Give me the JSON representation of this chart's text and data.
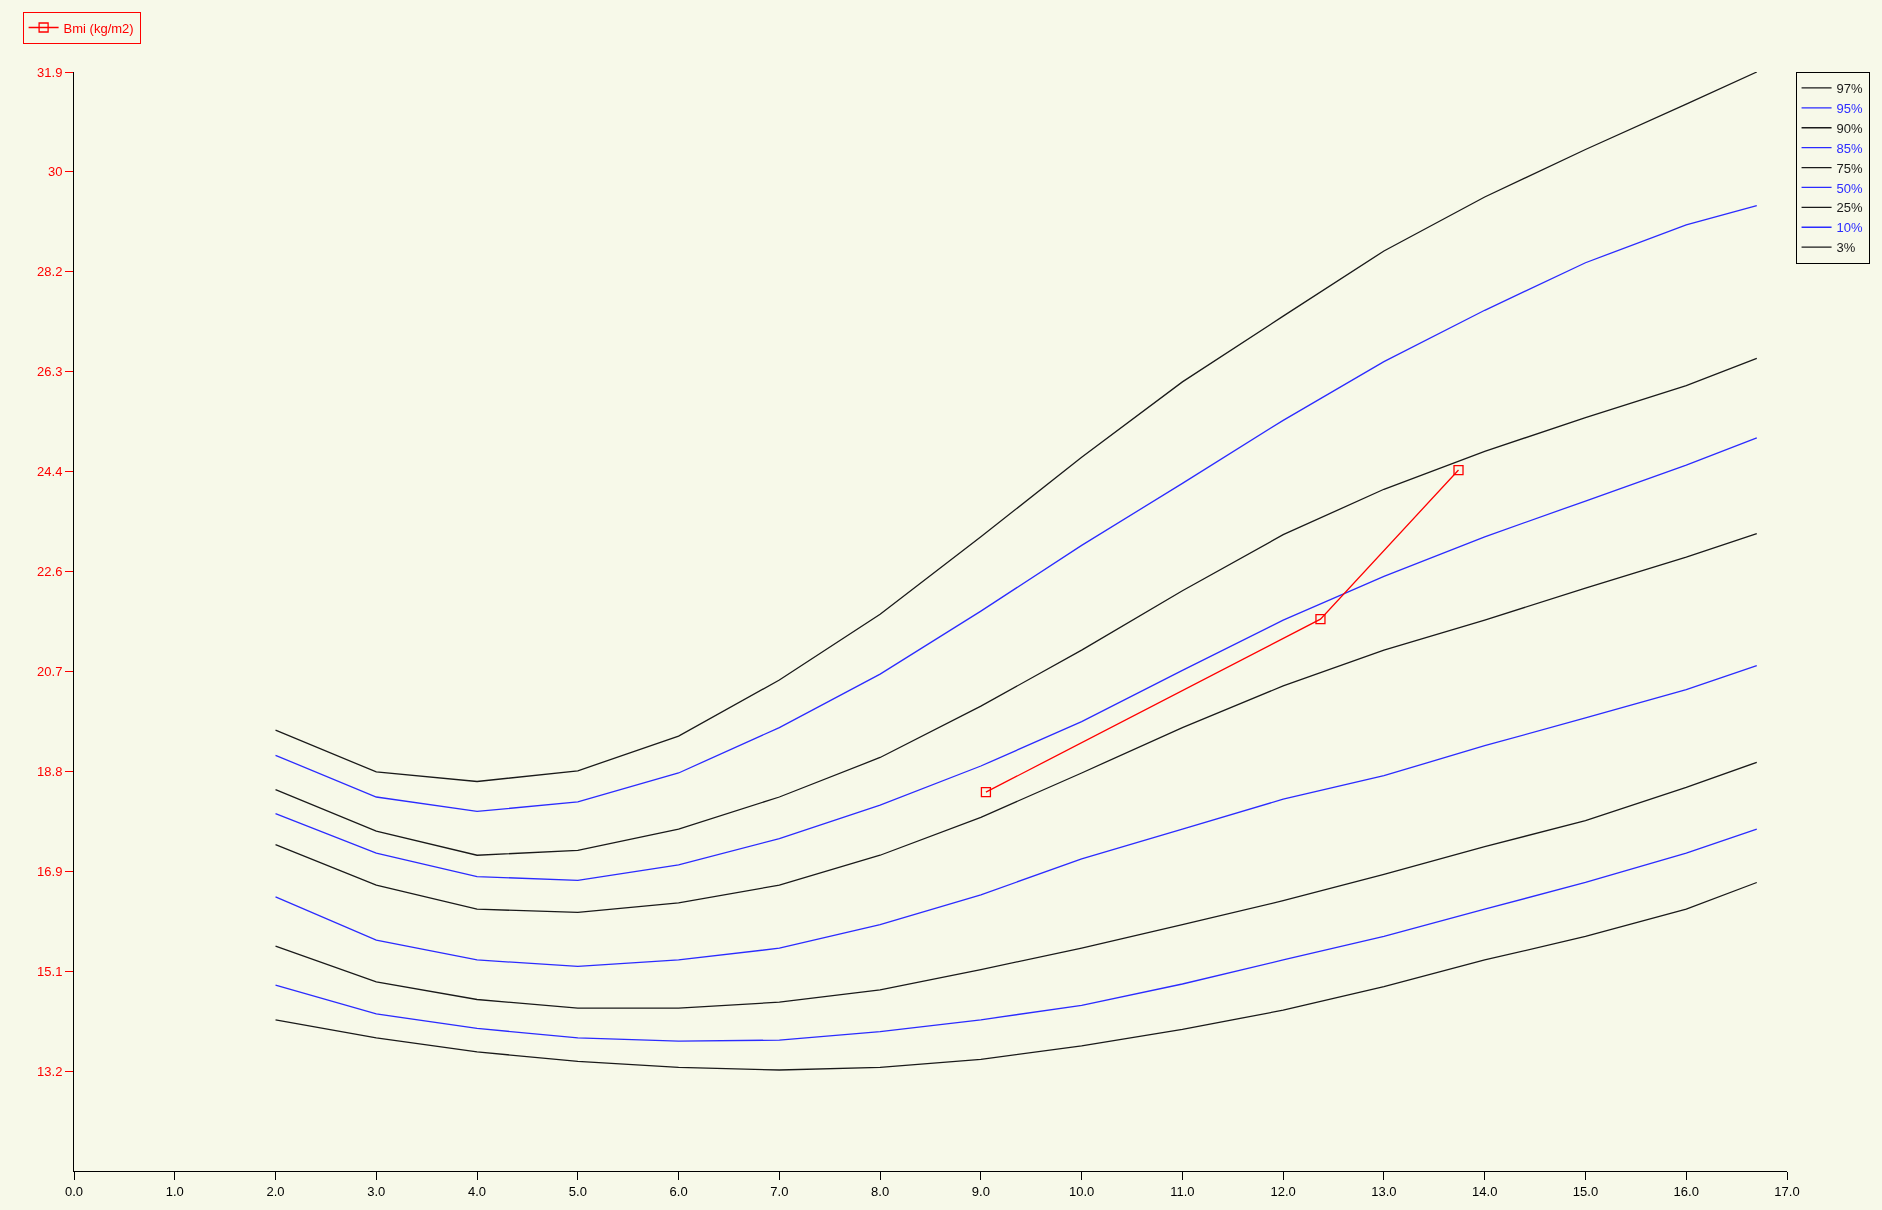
{
  "chart_data": {
    "type": "line",
    "x": [
      2,
      3,
      4,
      5,
      6,
      7,
      8,
      9,
      10,
      11,
      12,
      13,
      14,
      15,
      16,
      16.7
    ],
    "xlim": [
      0,
      17
    ],
    "xticks": [
      {
        "value": 0,
        "label": "0.0"
      },
      {
        "value": 1,
        "label": "1.0"
      },
      {
        "value": 2,
        "label": "2.0"
      },
      {
        "value": 3,
        "label": "3.0"
      },
      {
        "value": 4,
        "label": "4.0"
      },
      {
        "value": 5,
        "label": "5.0"
      },
      {
        "value": 6,
        "label": "6.0"
      },
      {
        "value": 7,
        "label": "7.0"
      },
      {
        "value": 8,
        "label": "8.0"
      },
      {
        "value": 9,
        "label": "9.0"
      },
      {
        "value": 10,
        "label": "10.0"
      },
      {
        "value": 11,
        "label": "11.0"
      },
      {
        "value": 12,
        "label": "12.0"
      },
      {
        "value": 13,
        "label": "13.0"
      },
      {
        "value": 14,
        "label": "14.0"
      },
      {
        "value": 15,
        "label": "15.0"
      },
      {
        "value": 16,
        "label": "16.0"
      },
      {
        "value": 17,
        "label": "17.0"
      }
    ],
    "ylim": [
      11.33,
      31.9
    ],
    "yticks": [
      {
        "value": 13.2,
        "label": "13.2"
      },
      {
        "value": 15.07,
        "label": "15.1"
      },
      {
        "value": 16.94,
        "label": "16.9"
      },
      {
        "value": 18.81,
        "label": "18.8"
      },
      {
        "value": 20.68,
        "label": "20.7"
      },
      {
        "value": 22.55,
        "label": "22.6"
      },
      {
        "value": 24.42,
        "label": "24.4"
      },
      {
        "value": 26.29,
        "label": "26.3"
      },
      {
        "value": 28.16,
        "label": "28.2"
      },
      {
        "value": 30.03,
        "label": "30"
      },
      {
        "value": 31.9,
        "label": "31.9"
      }
    ],
    "grid": false,
    "legend": "top right",
    "marker": "none",
    "line_style": "solid",
    "series": [
      {
        "name": "97%",
        "color": "#1a1a1a",
        "values": [
          19.58,
          18.8,
          18.62,
          18.82,
          19.47,
          20.52,
          21.75,
          23.2,
          24.69,
          26.1,
          27.33,
          28.55,
          29.56,
          30.45,
          31.3,
          31.9
        ]
      },
      {
        "name": "95%",
        "color": "#2b2bff",
        "values": [
          19.11,
          18.33,
          18.06,
          18.24,
          18.78,
          19.63,
          20.63,
          21.81,
          23.04,
          24.2,
          25.38,
          26.48,
          27.44,
          28.33,
          29.04,
          29.4
        ]
      },
      {
        "name": "90%",
        "color": "#1a1a1a",
        "values": [
          18.47,
          17.69,
          17.24,
          17.33,
          17.73,
          18.33,
          19.07,
          20.03,
          21.08,
          22.19,
          23.24,
          24.09,
          24.8,
          25.43,
          26.03,
          26.54
        ]
      },
      {
        "name": "85%",
        "color": "#2b2bff",
        "values": [
          18.02,
          17.28,
          16.84,
          16.77,
          17.06,
          17.55,
          18.18,
          18.91,
          19.74,
          20.7,
          21.64,
          22.46,
          23.2,
          23.87,
          24.54,
          25.05
        ]
      },
      {
        "name": "75%",
        "color": "#1a1a1a",
        "values": [
          17.44,
          16.68,
          16.23,
          16.17,
          16.35,
          16.68,
          17.24,
          17.95,
          18.78,
          19.63,
          20.41,
          21.08,
          21.64,
          22.24,
          22.82,
          23.26
        ]
      },
      {
        "name": "50%",
        "color": "#2b2bff",
        "values": [
          16.46,
          15.65,
          15.28,
          15.16,
          15.28,
          15.5,
          15.94,
          16.5,
          17.17,
          17.73,
          18.29,
          18.73,
          19.29,
          19.81,
          20.34,
          20.79
        ]
      },
      {
        "name": "25%",
        "color": "#1a1a1a",
        "values": [
          15.54,
          14.87,
          14.54,
          14.38,
          14.38,
          14.49,
          14.72,
          15.1,
          15.5,
          15.94,
          16.39,
          16.88,
          17.4,
          17.89,
          18.51,
          18.98
        ]
      },
      {
        "name": "10%",
        "color": "#2b2bff",
        "values": [
          14.81,
          14.27,
          14.0,
          13.82,
          13.76,
          13.78,
          13.94,
          14.16,
          14.43,
          14.83,
          15.28,
          15.72,
          16.23,
          16.73,
          17.28,
          17.73
        ]
      },
      {
        "name": "3%",
        "color": "#1a1a1a",
        "values": [
          14.16,
          13.82,
          13.56,
          13.38,
          13.27,
          13.22,
          13.27,
          13.42,
          13.67,
          13.98,
          14.34,
          14.78,
          15.28,
          15.72,
          16.23,
          16.73
        ]
      },
      {
        "name": "Bmi (kg/m2)",
        "color": "#ff0000",
        "marker": "square",
        "x": [
          9.05,
          12.37,
          13.74
        ],
        "values": [
          18.42,
          21.66,
          24.45
        ]
      }
    ]
  }
}
